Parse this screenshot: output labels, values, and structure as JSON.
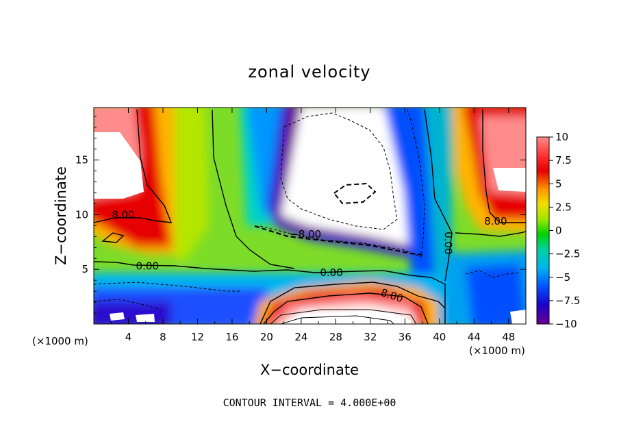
{
  "chart_data": {
    "type": "heatmap",
    "title": "zonal velocity",
    "xlabel": "X−coordinate",
    "ylabel": "Z−coordinate",
    "x_unit_left": "(×1000 m)",
    "x_unit_right": "(×1000 m)",
    "xlim": [
      0,
      50
    ],
    "ylim": [
      0,
      19.8
    ],
    "x_ticks": [
      4,
      8,
      12,
      16,
      20,
      24,
      28,
      32,
      36,
      40,
      44,
      48
    ],
    "y_ticks": [
      5,
      10,
      15
    ],
    "colorbar": {
      "range": [
        -10,
        10
      ],
      "ticks": [
        10,
        7.5,
        5,
        2.5,
        0,
        -2.5,
        -5,
        -7.5,
        -10
      ],
      "tick_labels": [
        "10",
        "7.5",
        "5",
        "2.5",
        "0",
        "−2.5",
        "−5",
        "−7.5",
        "−10"
      ]
    },
    "contour_labels": [
      {
        "text": "8.00",
        "x": 3.4,
        "y": 10.0
      },
      {
        "text": "−8.00",
        "x": 24.5,
        "y": 8.2
      },
      {
        "text": "0.00",
        "x": 6.2,
        "y": 5.3
      },
      {
        "text": "0.00",
        "x": 27.5,
        "y": 4.7
      },
      {
        "text": "8.00",
        "x": 34.5,
        "y": 2.6
      },
      {
        "text": "0.00",
        "x": 41.0,
        "y": 7.4
      },
      {
        "text": "8.00",
        "x": 46.5,
        "y": 9.4
      }
    ],
    "footer": "CONTOUR INTERVAL = 4.000E+00",
    "colors": {
      "scale": [
        "#6a0090",
        "#1c00c8",
        "#0050ff",
        "#00b4f0",
        "#00d2a0",
        "#00d200",
        "#9ee600",
        "#f0f000",
        "#ffb400",
        "#ff4000",
        "#e60000",
        "#ff8c8c",
        "#ffffff"
      ]
    }
  }
}
